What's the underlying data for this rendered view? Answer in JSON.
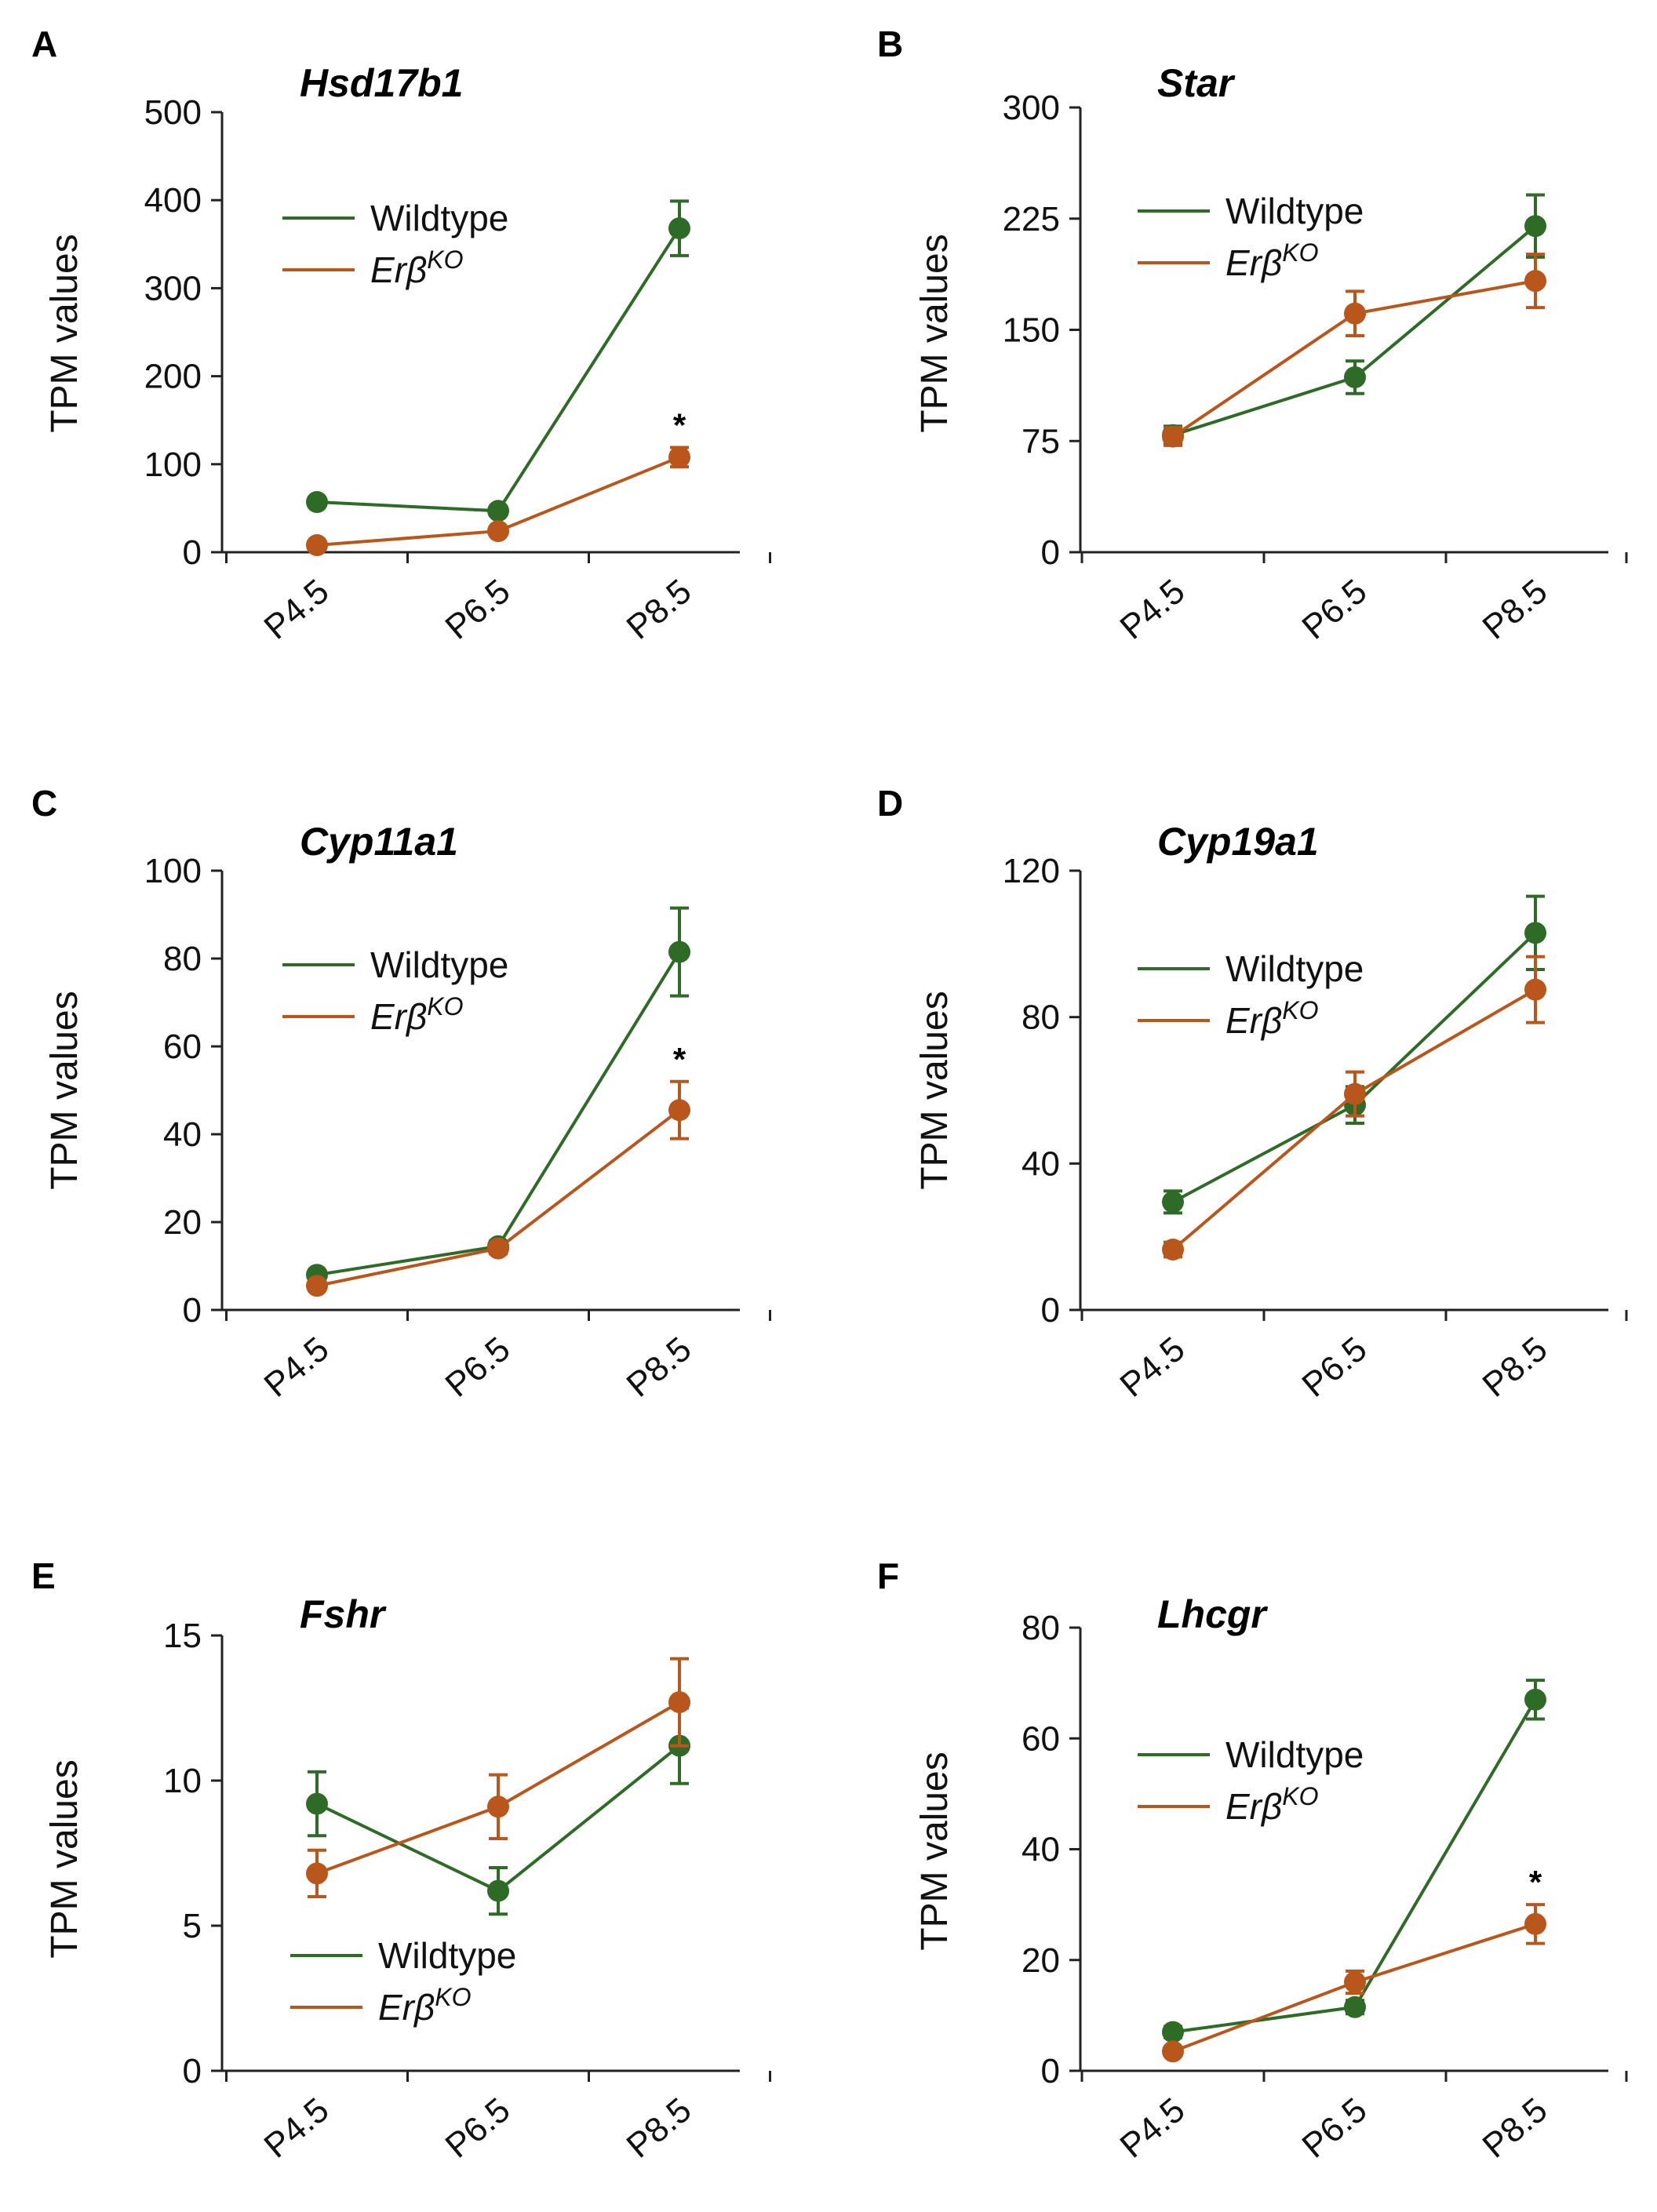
{
  "colors": {
    "wildtype": "#2e6b27",
    "erbko": "#b8561b",
    "axis": "#222222"
  },
  "legend": {
    "wildtype": "Wildtype",
    "erbko_base": "Erβ",
    "erbko_sup": "KO"
  },
  "chart_data": [
    {
      "panel": "A",
      "type": "line",
      "title": "Hsd17b1",
      "categories": [
        "P4.5",
        "P6.5",
        "P8.5"
      ],
      "ylabel": "TPM   values",
      "ylim": [
        0,
        500
      ],
      "yticks": [
        0,
        100,
        200,
        300,
        400,
        500
      ],
      "legend_position": "top-left",
      "series": [
        {
          "name": "Wildtype",
          "values": [
            57,
            47,
            368
          ],
          "errors": [
            5,
            4,
            31
          ]
        },
        {
          "name": "ErβKO",
          "values": [
            8,
            24,
            108
          ],
          "errors": [
            3,
            4,
            11
          ]
        }
      ],
      "significance": [
        {
          "category": "P8.5",
          "label": "*"
        }
      ]
    },
    {
      "panel": "B",
      "type": "line",
      "title": "Star",
      "categories": [
        "P4.5",
        "P6.5",
        "P8.5"
      ],
      "ylabel": "TPM   values",
      "ylim": [
        0,
        300
      ],
      "yticks": [
        0,
        75,
        150,
        225,
        300
      ],
      "legend_position": "top-left",
      "series": [
        {
          "name": "Wildtype",
          "values": [
            79,
            118,
            220
          ],
          "errors": [
            6,
            11,
            21
          ]
        },
        {
          "name": "ErβKO",
          "values": [
            78,
            161,
            183
          ],
          "errors": [
            6,
            15,
            18
          ]
        }
      ],
      "significance": []
    },
    {
      "panel": "C",
      "type": "line",
      "title": "Cyp11a1",
      "categories": [
        "P4.5",
        "P6.5",
        "P8.5"
      ],
      "ylabel": "TPM   values",
      "ylim": [
        0,
        100
      ],
      "yticks": [
        0,
        20,
        40,
        60,
        80,
        100
      ],
      "legend_position": "top-left",
      "series": [
        {
          "name": "Wildtype",
          "values": [
            8,
            14.5,
            81.5
          ],
          "errors": [
            1,
            1.2,
            10
          ]
        },
        {
          "name": "ErβKO",
          "values": [
            5.5,
            14,
            45.5
          ],
          "errors": [
            1,
            1.2,
            6.5
          ]
        }
      ],
      "significance": [
        {
          "category": "P8.5",
          "label": "*"
        }
      ]
    },
    {
      "panel": "D",
      "type": "line",
      "title": "Cyp19a1",
      "categories": [
        "P4.5",
        "P6.5",
        "P8.5"
      ],
      "ylabel": "TPM   values",
      "ylim": [
        0,
        120
      ],
      "yticks": [
        0,
        40,
        80,
        120
      ],
      "legend_position": "top-left",
      "series": [
        {
          "name": "Wildtype",
          "values": [
            29.5,
            56,
            103
          ],
          "errors": [
            3,
            5,
            10
          ]
        },
        {
          "name": "ErβKO",
          "values": [
            16.5,
            59,
            87.5
          ],
          "errors": [
            2,
            6,
            9
          ]
        }
      ],
      "significance": []
    },
    {
      "panel": "E",
      "type": "line",
      "title": "Fshr",
      "categories": [
        "P4.5",
        "P6.5",
        "P8.5"
      ],
      "ylabel": "TPM   values",
      "ylim": [
        0,
        15
      ],
      "yticks": [
        0,
        5,
        10,
        15
      ],
      "legend_position": "bottom-left",
      "series": [
        {
          "name": "Wildtype",
          "values": [
            9.2,
            6.2,
            11.2
          ],
          "errors": [
            1.1,
            0.8,
            1.3
          ]
        },
        {
          "name": "ErβKO",
          "values": [
            6.8,
            9.1,
            12.7
          ],
          "errors": [
            0.8,
            1.1,
            1.5
          ]
        }
      ],
      "significance": []
    },
    {
      "panel": "F",
      "type": "line",
      "title": "Lhcgr",
      "categories": [
        "P4.5",
        "P6.5",
        "P8.5"
      ],
      "ylabel": "TPM   values",
      "ylim": [
        0,
        80
      ],
      "yticks": [
        0,
        20,
        40,
        60,
        80
      ],
      "legend_position": "top-left",
      "series": [
        {
          "name": "Wildtype",
          "values": [
            7,
            11.5,
            67
          ],
          "errors": [
            1,
            1.2,
            3.5
          ]
        },
        {
          "name": "ErβKO",
          "values": [
            3.5,
            16,
            26.5
          ],
          "errors": [
            0.8,
            2,
            3.5
          ]
        }
      ],
      "significance": [
        {
          "category": "P8.5",
          "label": "*"
        }
      ]
    }
  ]
}
